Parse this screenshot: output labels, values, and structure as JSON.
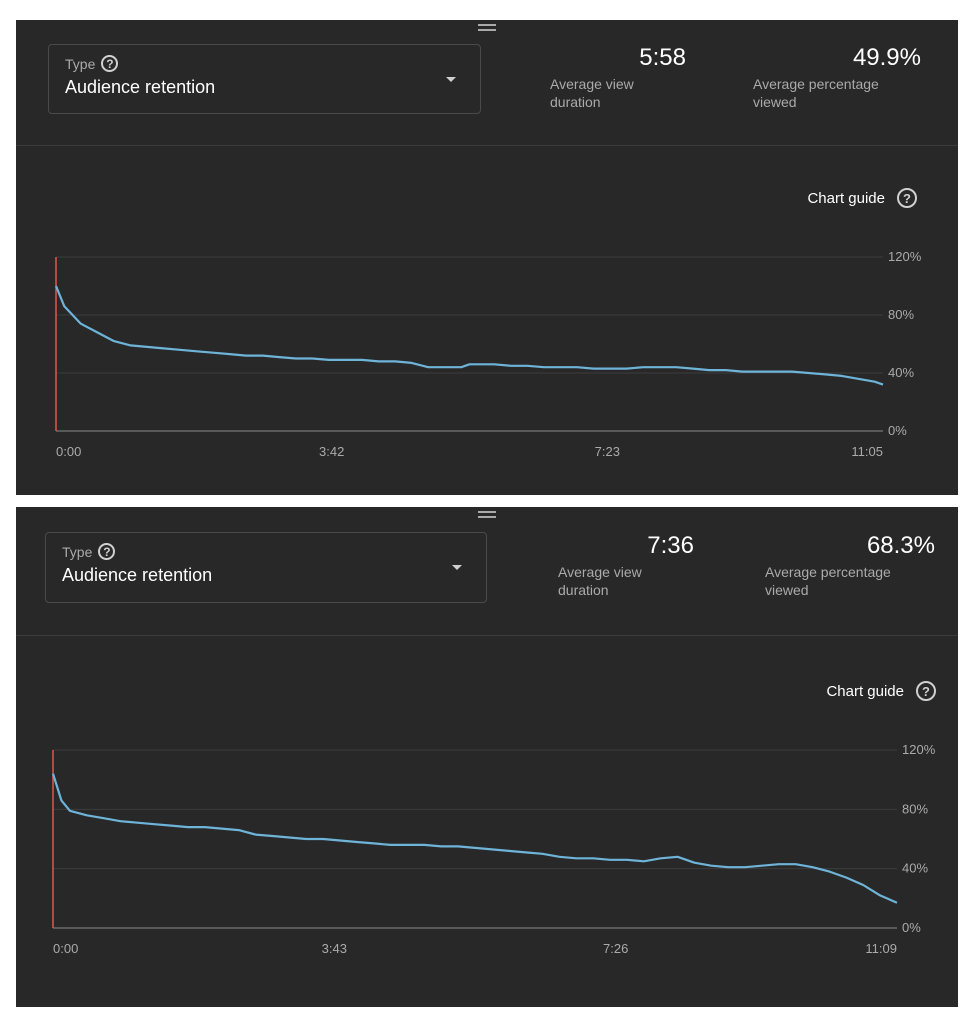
{
  "panels": [
    {
      "type_label": "Type",
      "type_value": "Audience retention",
      "metric1": {
        "value": "5:58",
        "label": "Average view duration"
      },
      "metric2": {
        "value": "49.9%",
        "label": "Average percentage viewed"
      },
      "chart_guide_label": "Chart guide"
    },
    {
      "type_label": "Type",
      "type_value": "Audience retention",
      "metric1": {
        "value": "7:36",
        "label": "Average view duration"
      },
      "metric2": {
        "value": "68.3%",
        "label": "Average percentage viewed"
      },
      "chart_guide_label": "Chart guide"
    }
  ],
  "colors": {
    "background": "#282828",
    "line": "#6eb4d9",
    "marker": "#e2574c",
    "grid": "#3d3d3d"
  },
  "chart_data": [
    {
      "type": "line",
      "title": "",
      "x_tick_labels": [
        "0:00",
        "3:42",
        "7:23",
        "11:05"
      ],
      "y_tick_labels": [
        "120%",
        "80%",
        "40%",
        "0%"
      ],
      "ylim": [
        0,
        120
      ],
      "xlim": [
        0,
        1
      ],
      "grid": true,
      "series": [
        {
          "x": [
            0,
            0.01,
            0.03,
            0.05,
            0.07,
            0.09,
            0.11,
            0.13,
            0.15,
            0.17,
            0.19,
            0.21,
            0.23,
            0.25,
            0.27,
            0.29,
            0.31,
            0.33,
            0.35,
            0.37,
            0.39,
            0.41,
            0.43,
            0.45,
            0.47,
            0.49,
            0.5,
            0.51,
            0.53,
            0.55,
            0.57,
            0.59,
            0.61,
            0.63,
            0.65,
            0.67,
            0.69,
            0.71,
            0.73,
            0.75,
            0.77,
            0.79,
            0.81,
            0.83,
            0.85,
            0.87,
            0.89,
            0.91,
            0.93,
            0.95,
            0.97,
            0.99,
            1
          ],
          "y": [
            100,
            86,
            74,
            68,
            62,
            59,
            58,
            57,
            56,
            55,
            54,
            53,
            52,
            52,
            51,
            50,
            50,
            49,
            49,
            49,
            48,
            48,
            47,
            44,
            44,
            44,
            46,
            46,
            46,
            45,
            45,
            44,
            44,
            44,
            43,
            43,
            43,
            44,
            44,
            44,
            43,
            42,
            42,
            41,
            41,
            41,
            41,
            40,
            39,
            38,
            36,
            34,
            32
          ]
        }
      ]
    },
    {
      "type": "line",
      "title": "",
      "x_tick_labels": [
        "0:00",
        "3:43",
        "7:26",
        "11:09"
      ],
      "y_tick_labels": [
        "120%",
        "80%",
        "40%",
        "0%"
      ],
      "ylim": [
        0,
        120
      ],
      "xlim": [
        0,
        1
      ],
      "grid": true,
      "series": [
        {
          "x": [
            0,
            0.01,
            0.02,
            0.04,
            0.06,
            0.08,
            0.1,
            0.12,
            0.14,
            0.16,
            0.18,
            0.2,
            0.22,
            0.24,
            0.26,
            0.28,
            0.3,
            0.32,
            0.34,
            0.36,
            0.38,
            0.4,
            0.42,
            0.44,
            0.46,
            0.48,
            0.5,
            0.52,
            0.54,
            0.56,
            0.58,
            0.6,
            0.62,
            0.64,
            0.66,
            0.68,
            0.7,
            0.72,
            0.74,
            0.76,
            0.78,
            0.8,
            0.82,
            0.84,
            0.86,
            0.88,
            0.9,
            0.92,
            0.94,
            0.96,
            0.98,
            1
          ],
          "y": [
            104,
            86,
            79,
            76,
            74,
            72,
            71,
            70,
            69,
            68,
            68,
            67,
            66,
            63,
            62,
            61,
            60,
            60,
            59,
            58,
            57,
            56,
            56,
            56,
            55,
            55,
            54,
            53,
            52,
            51,
            50,
            48,
            47,
            47,
            46,
            46,
            45,
            47,
            48,
            44,
            42,
            41,
            41,
            42,
            43,
            43,
            41,
            38,
            34,
            29,
            22,
            17
          ]
        }
      ]
    }
  ]
}
